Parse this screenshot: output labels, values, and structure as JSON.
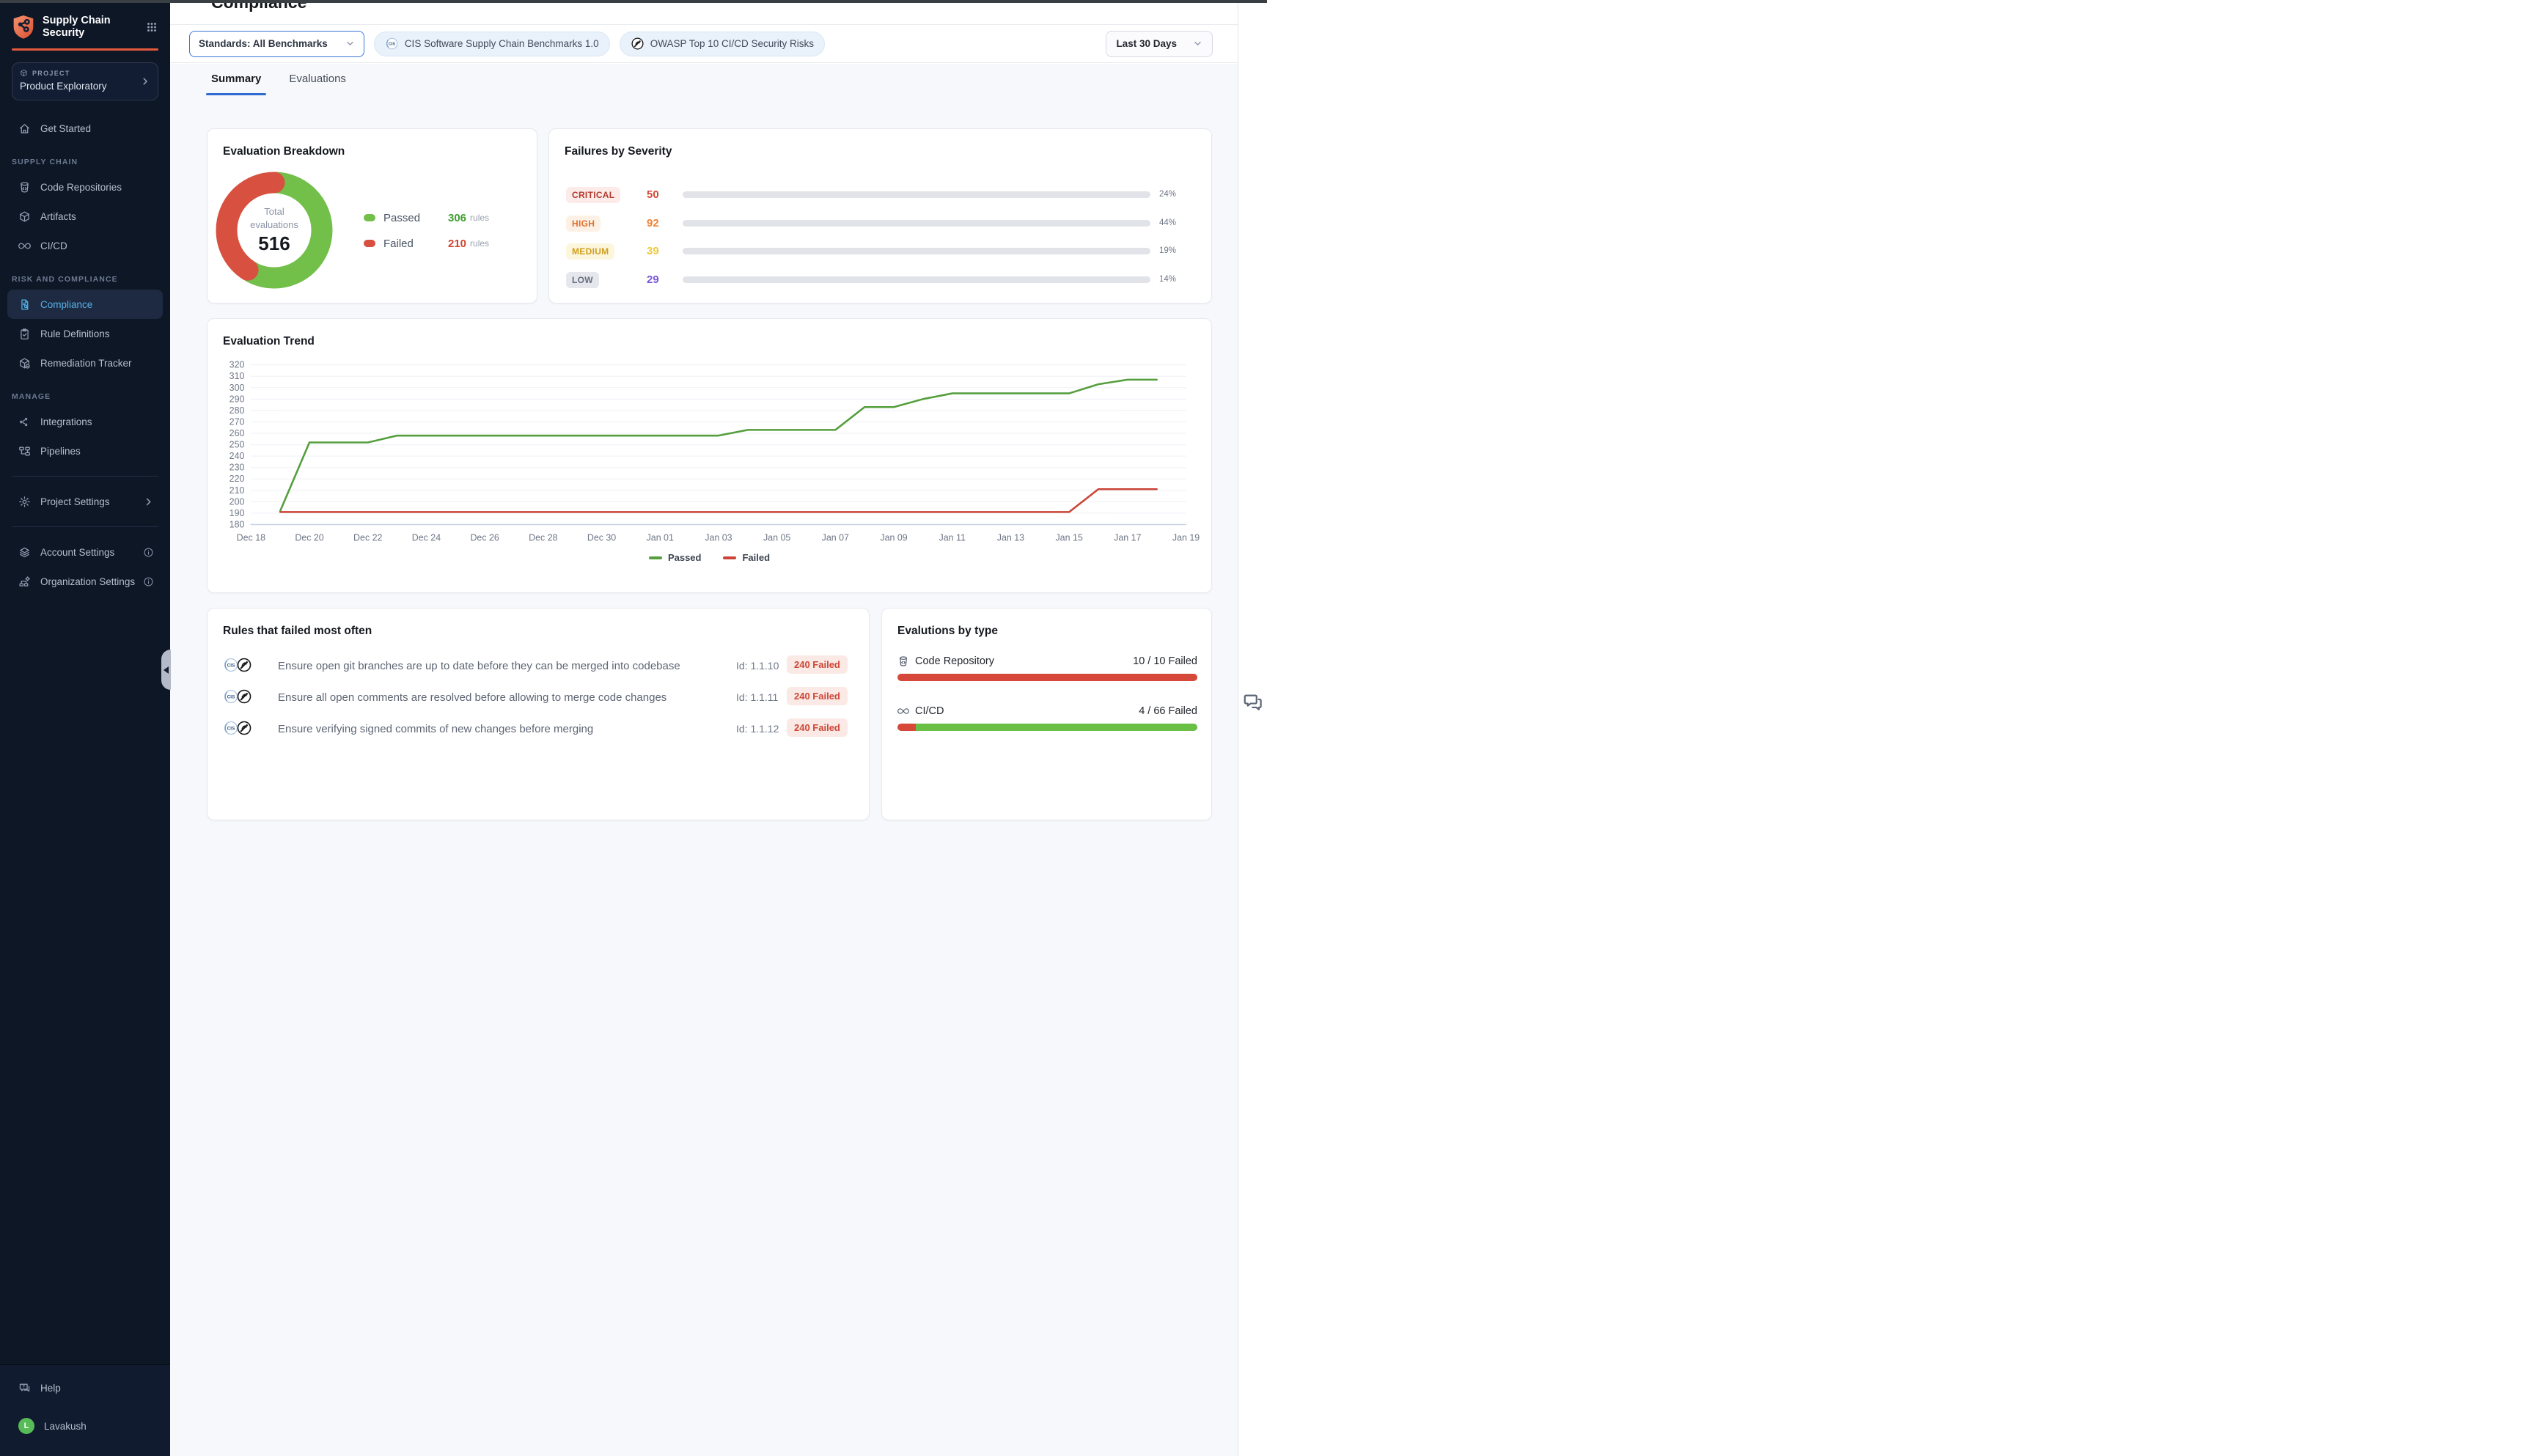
{
  "window": {
    "top_strip_color": "#3a3f44"
  },
  "sidebar": {
    "brand": {
      "line1": "Supply Chain",
      "line2": "Security"
    },
    "project": {
      "eyebrow": "PROJECT",
      "name": "Product Exploratory"
    },
    "sections": [
      {
        "label": "",
        "items": [
          {
            "id": "get-started",
            "icon": "home",
            "label": "Get Started"
          }
        ]
      },
      {
        "label": "SUPPLY CHAIN",
        "items": [
          {
            "id": "code-repositories",
            "icon": "repo",
            "label": "Code Repositories"
          },
          {
            "id": "artifacts",
            "icon": "cube",
            "label": "Artifacts"
          },
          {
            "id": "cicd",
            "icon": "infinity",
            "label": "CI/CD"
          }
        ]
      },
      {
        "label": "RISK AND COMPLIANCE",
        "items": [
          {
            "id": "compliance",
            "icon": "doc-search",
            "label": "Compliance",
            "active": true
          },
          {
            "id": "rule-definitions",
            "icon": "clipboard-check",
            "label": "Rule Definitions"
          },
          {
            "id": "remediation-tracker",
            "icon": "box-tag",
            "label": "Remediation Tracker"
          }
        ]
      },
      {
        "label": "MANAGE",
        "items": [
          {
            "id": "integrations",
            "icon": "share",
            "label": "Integrations"
          },
          {
            "id": "pipelines",
            "icon": "pipeline",
            "label": "Pipelines"
          }
        ]
      }
    ],
    "settings": [
      {
        "id": "project-settings",
        "icon": "gear",
        "label": "Project Settings",
        "chevron": true
      },
      {
        "id": "account-settings",
        "icon": "layers",
        "label": "Account Settings",
        "info": true
      },
      {
        "id": "organization-settings",
        "icon": "org",
        "label": "Organization Settings",
        "info": true
      }
    ],
    "footer": [
      {
        "id": "help",
        "icon": "help",
        "label": "Help"
      },
      {
        "id": "user",
        "avatar": "L",
        "label": "Lavakush"
      }
    ]
  },
  "header": {
    "title": "Compliance",
    "standards_dropdown": {
      "value": "Standards: All Benchmarks"
    },
    "chips": [
      {
        "icon": "cis",
        "label": "CIS Software Supply Chain Benchmarks 1.0"
      },
      {
        "icon": "owasp",
        "label": "OWASP Top 10 CI/CD Security Risks"
      }
    ],
    "date_dropdown": {
      "value": "Last 30 Days"
    }
  },
  "tabs": [
    {
      "label": "Summary",
      "active": true
    },
    {
      "label": "Evaluations",
      "active": false
    }
  ],
  "chart_data": [
    {
      "type": "pie",
      "title": "Evaluation Breakdown",
      "total_label_lines": [
        "Total",
        "evaluations"
      ],
      "total": 516,
      "unit": "rules",
      "slices": [
        {
          "label": "Passed",
          "value": 306,
          "color": "#72bf4a",
          "value_color": "#3f9e2f"
        },
        {
          "label": "Failed",
          "value": 210,
          "color": "#d8503f",
          "value_color": "#cd4533"
        }
      ]
    },
    {
      "type": "bar",
      "title": "Failures by Severity",
      "orientation": "horizontal",
      "rows": [
        {
          "severity": "CRITICAL",
          "count": 50,
          "percent": 24,
          "percent_label": "24%",
          "badge_fg": "#b23c2e",
          "badge_bg": "#fcebe8",
          "count_color": "#d1493a",
          "bar_from": "#efb6aa",
          "bar_to": "#cf4130"
        },
        {
          "severity": "HIGH",
          "count": 92,
          "percent": 44,
          "percent_label": "44%",
          "badge_fg": "#e0702c",
          "badge_bg": "#fdf1e5",
          "count_color": "#ee8435",
          "bar_from": "#f9d8b6",
          "bar_to": "#ee8435"
        },
        {
          "severity": "MEDIUM",
          "count": 39,
          "percent": 19,
          "percent_label": "19%",
          "badge_fg": "#cf9f1f",
          "badge_bg": "#fcf6dc",
          "count_color": "#edc93d",
          "bar_from": "#fbf0bd",
          "bar_to": "#f0cb3e"
        },
        {
          "severity": "LOW",
          "count": 29,
          "percent": 14,
          "percent_label": "14%",
          "badge_fg": "#666e7e",
          "badge_bg": "#e6e7ed",
          "count_color": "#7a58d8",
          "bar_from": "#c3aef3",
          "bar_to": "#6a46d2"
        }
      ]
    },
    {
      "type": "line",
      "title": "Evaluation Trend",
      "ylim": [
        180,
        320
      ],
      "ytick_step": 10,
      "grid": true,
      "legend_position": "bottom",
      "x": [
        "Dec 19",
        "Dec 20",
        "Dec 21",
        "Dec 22",
        "Dec 23",
        "Dec 24",
        "Dec 25",
        "Dec 26",
        "Dec 27",
        "Dec 28",
        "Dec 29",
        "Dec 30",
        "Dec 31",
        "Jan 01",
        "Jan 02",
        "Jan 03",
        "Jan 04",
        "Jan 05",
        "Jan 06",
        "Jan 07",
        "Jan 08",
        "Jan 09",
        "Jan 10",
        "Jan 11",
        "Jan 12",
        "Jan 13",
        "Jan 14",
        "Jan 15",
        "Jan 16",
        "Jan 17",
        "Jan 18"
      ],
      "x_axis_ticks": [
        "Dec 18",
        "Dec 20",
        "Dec 22",
        "Dec 24",
        "Dec 26",
        "Dec 28",
        "Dec 30",
        "Jan 01",
        "Jan 03",
        "Jan 05",
        "Jan 07",
        "Jan 09",
        "Jan 11",
        "Jan 13",
        "Jan 15",
        "Jan 17",
        "Jan 19"
      ],
      "series": [
        {
          "name": "Passed",
          "color": "#559e3e",
          "values": [
            192,
            252,
            252,
            252,
            258,
            258,
            258,
            258,
            258,
            258,
            258,
            258,
            258,
            258,
            258,
            258,
            263,
            263,
            263,
            263,
            283,
            283,
            290,
            295,
            295,
            295,
            295,
            295,
            303,
            307,
            307
          ]
        },
        {
          "name": "Failed",
          "color": "#cc4437",
          "values": [
            191,
            191,
            191,
            191,
            191,
            191,
            191,
            191,
            191,
            191,
            191,
            191,
            191,
            191,
            191,
            191,
            191,
            191,
            191,
            191,
            191,
            191,
            191,
            191,
            191,
            191,
            191,
            191,
            211,
            211,
            211
          ]
        }
      ]
    },
    {
      "type": "bar",
      "title": "Evalutions by type",
      "orientation": "horizontal",
      "rows": [
        {
          "label": "Code Repository",
          "icon": "repo",
          "status_label": "10 / 10 Failed",
          "failed": 10,
          "total": 10,
          "fail_color": "#d6493a",
          "pass_color": "#6abf45"
        },
        {
          "label": "CI/CD",
          "icon": "infinity",
          "status_label": "4 / 66 Failed",
          "failed": 4,
          "total": 66,
          "fail_color": "#d6493a",
          "pass_color": "#6abf45"
        }
      ]
    }
  ],
  "rules_card": {
    "title": "Rules that failed most often",
    "rows": [
      {
        "text": "Ensure open git branches are up to date before they can be merged into codebase",
        "id_label": "Id: 1.1.10",
        "badge": "240 Failed"
      },
      {
        "text": "Ensure all open comments are resolved before allowing to merge code changes",
        "id_label": "Id: 1.1.11",
        "badge": "240 Failed"
      },
      {
        "text": "Ensure verifying signed commits of new changes before merging",
        "id_label": "Id: 1.1.12",
        "badge": "240 Failed"
      }
    ]
  }
}
